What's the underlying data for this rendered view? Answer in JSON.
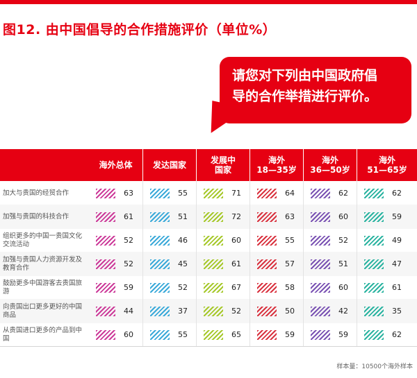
{
  "title": "图12. 由中国倡导的合作措施评价（单位%）",
  "bubble": {
    "line1": "请您对下列由中国政府倡",
    "line2": "导的合作举措进行评价。"
  },
  "footer": "样本量：10500个海外样本",
  "colors": {
    "accent": "#e60012",
    "overseas_total": "#cc3a99",
    "developed": "#3aa9d9",
    "developing": "#a6c82a",
    "age_18_35": "#d9323f",
    "age_36_50": "#7a52b3",
    "age_51_65": "#2ab3a0"
  },
  "chart_data": {
    "type": "table",
    "title": "图12. 由中国倡导的合作措施评价（单位%）",
    "columns": [
      {
        "label": "海外总体"
      },
      {
        "label": "发达国家"
      },
      {
        "label_line1": "发展中",
        "label_line2": "国家"
      },
      {
        "label_line1": "海外",
        "label_line2": "18—35岁"
      },
      {
        "label_line1": "海外",
        "label_line2": "36—50岁"
      },
      {
        "label_line1": "海外",
        "label_line2": "51—65岁"
      }
    ],
    "rows": [
      {
        "label": "加大与贵国的经贸合作",
        "values": [
          63,
          55,
          71,
          64,
          62,
          62
        ]
      },
      {
        "label": "加强与贵国的科技合作",
        "values": [
          61,
          51,
          72,
          63,
          60,
          59
        ]
      },
      {
        "label": "组织更多的中国一贵国文化交流活动",
        "values": [
          52,
          46,
          60,
          55,
          52,
          49
        ]
      },
      {
        "label": "加强与贵国人力资源开发及教育合作",
        "values": [
          52,
          45,
          61,
          57,
          51,
          47
        ]
      },
      {
        "label": "鼓励更多中国游客去贵国旅游",
        "values": [
          59,
          52,
          67,
          58,
          60,
          61
        ]
      },
      {
        "label": "向贵国出口更多更好的中国商品",
        "values": [
          44,
          37,
          52,
          50,
          42,
          35
        ]
      },
      {
        "label": "从贵国进口更多的产品到中国",
        "values": [
          60,
          55,
          65,
          59,
          59,
          62
        ]
      }
    ],
    "legend": "column headers"
  }
}
